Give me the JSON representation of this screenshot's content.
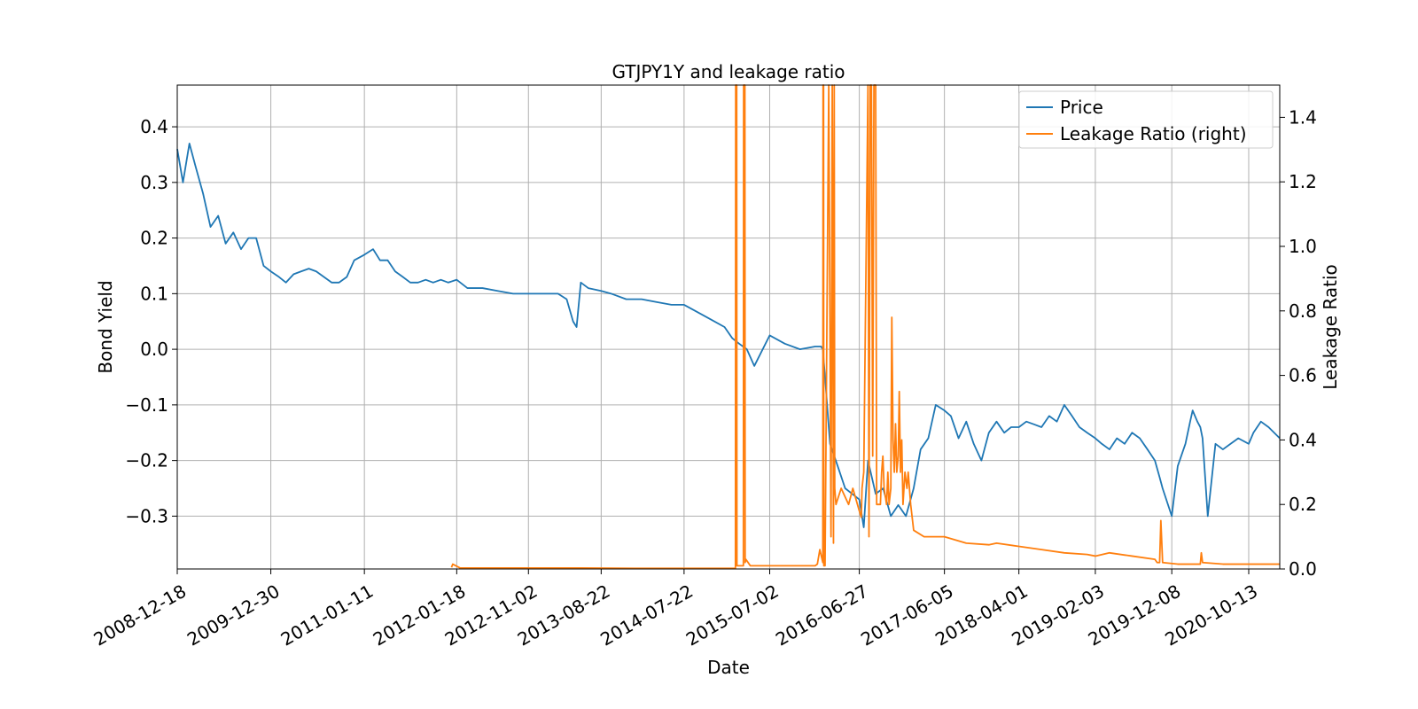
{
  "chart_data": {
    "type": "line",
    "title": "GTJPY1Y and leakage ratio",
    "xlabel": "Date",
    "ylabel": "Bond Yield",
    "y2label": "Leakage Ratio",
    "xlim": [
      "2008-12-18",
      "2021-02-15"
    ],
    "ylim": [
      -0.395,
      0.475
    ],
    "y2lim": [
      0.0,
      1.5
    ],
    "grid": true,
    "legend_position": "top-right",
    "x_ticks": [
      "2008-12-18",
      "2009-12-30",
      "2011-01-11",
      "2012-01-18",
      "2012-11-02",
      "2013-08-22",
      "2014-07-22",
      "2015-07-02",
      "2016-06-27",
      "2017-06-05",
      "2018-04-01",
      "2019-02-03",
      "2019-12-08",
      "2020-10-13"
    ],
    "y_ticks": [
      "0.4",
      "0.3",
      "0.2",
      "0.1",
      "0.0",
      "−0.1",
      "−0.2",
      "−0.3"
    ],
    "y_tick_values": [
      0.4,
      0.3,
      0.2,
      0.1,
      0.0,
      -0.1,
      -0.2,
      -0.3
    ],
    "y2_ticks": [
      "1.4",
      "1.2",
      "1.0",
      "0.8",
      "0.6",
      "0.4",
      "0.2",
      "0.0"
    ],
    "y2_tick_values": [
      1.4,
      1.2,
      1.0,
      0.8,
      0.6,
      0.4,
      0.2,
      0.0
    ],
    "series": [
      {
        "name": "Price",
        "axis": "left",
        "color": "#1f77b4",
        "x": [
          "2008-12-18",
          "2009-01-10",
          "2009-02-05",
          "2009-03-01",
          "2009-04-01",
          "2009-05-01",
          "2009-06-01",
          "2009-07-01",
          "2009-08-01",
          "2009-09-01",
          "2009-10-01",
          "2009-11-01",
          "2009-12-01",
          "2009-12-30",
          "2010-02-01",
          "2010-03-01",
          "2010-04-01",
          "2010-05-01",
          "2010-06-01",
          "2010-07-01",
          "2010-08-01",
          "2010-09-01",
          "2010-10-01",
          "2010-11-01",
          "2010-12-01",
          "2011-01-11",
          "2011-02-15",
          "2011-03-15",
          "2011-04-15",
          "2011-05-15",
          "2011-06-15",
          "2011-07-15",
          "2011-08-15",
          "2011-09-15",
          "2011-10-15",
          "2011-11-15",
          "2011-12-15",
          "2012-01-18",
          "2012-03-01",
          "2012-05-01",
          "2012-07-01",
          "2012-09-01",
          "2012-11-02",
          "2013-01-01",
          "2013-03-01",
          "2013-04-05",
          "2013-05-01",
          "2013-05-15",
          "2013-06-01",
          "2013-07-01",
          "2013-08-22",
          "2013-10-01",
          "2013-12-01",
          "2014-02-01",
          "2014-04-01",
          "2014-06-01",
          "2014-07-22",
          "2014-09-01",
          "2014-11-01",
          "2015-01-01",
          "2015-02-01",
          "2015-03-01",
          "2015-04-01",
          "2015-05-01",
          "2015-07-02",
          "2015-09-01",
          "2015-11-01",
          "2016-01-01",
          "2016-01-25",
          "2016-02-01",
          "2016-02-10",
          "2016-03-01",
          "2016-04-01",
          "2016-05-01",
          "2016-06-27",
          "2016-07-15",
          "2016-08-01",
          "2016-09-01",
          "2016-10-01",
          "2016-11-01",
          "2016-12-01",
          "2017-01-01",
          "2017-02-01",
          "2017-03-01",
          "2017-04-01",
          "2017-05-01",
          "2017-06-05",
          "2017-07-01",
          "2017-08-01",
          "2017-09-01",
          "2017-10-01",
          "2017-11-01",
          "2017-12-01",
          "2018-01-01",
          "2018-02-01",
          "2018-03-01",
          "2018-04-01",
          "2018-05-01",
          "2018-06-01",
          "2018-07-01",
          "2018-08-01",
          "2018-09-01",
          "2018-10-01",
          "2018-11-01",
          "2018-12-01",
          "2019-01-01",
          "2019-02-03",
          "2019-03-01",
          "2019-04-01",
          "2019-05-01",
          "2019-06-01",
          "2019-07-01",
          "2019-08-01",
          "2019-09-01",
          "2019-10-01",
          "2019-10-20",
          "2019-11-01",
          "2019-12-08",
          "2020-01-01",
          "2020-02-01",
          "2020-02-20",
          "2020-03-01",
          "2020-03-20",
          "2020-04-01",
          "2020-04-10",
          "2020-05-01",
          "2020-06-01",
          "2020-07-01",
          "2020-08-01",
          "2020-09-01",
          "2020-10-13",
          "2020-11-01",
          "2020-12-01",
          "2021-01-01",
          "2021-02-15"
        ],
        "values": [
          0.36,
          0.3,
          0.37,
          0.33,
          0.28,
          0.22,
          0.24,
          0.19,
          0.21,
          0.18,
          0.2,
          0.2,
          0.15,
          0.14,
          0.13,
          0.12,
          0.135,
          0.14,
          0.145,
          0.14,
          0.13,
          0.12,
          0.12,
          0.13,
          0.16,
          0.17,
          0.18,
          0.16,
          0.16,
          0.14,
          0.13,
          0.12,
          0.12,
          0.125,
          0.12,
          0.125,
          0.12,
          0.125,
          0.11,
          0.11,
          0.105,
          0.1,
          0.1,
          0.1,
          0.1,
          0.09,
          0.05,
          0.04,
          0.12,
          0.11,
          0.105,
          0.1,
          0.09,
          0.09,
          0.085,
          0.08,
          0.08,
          0.07,
          0.055,
          0.04,
          0.02,
          0.01,
          0.0,
          -0.03,
          0.025,
          0.01,
          0.0,
          0.005,
          0.005,
          0.0,
          -0.05,
          -0.17,
          -0.21,
          -0.25,
          -0.27,
          -0.32,
          -0.2,
          -0.26,
          -0.25,
          -0.3,
          -0.28,
          -0.3,
          -0.25,
          -0.18,
          -0.16,
          -0.1,
          -0.11,
          -0.12,
          -0.16,
          -0.13,
          -0.17,
          -0.2,
          -0.15,
          -0.13,
          -0.15,
          -0.14,
          -0.14,
          -0.13,
          -0.135,
          -0.14,
          -0.12,
          -0.13,
          -0.1,
          -0.12,
          -0.14,
          -0.15,
          -0.16,
          -0.17,
          -0.18,
          -0.16,
          -0.17,
          -0.15,
          -0.16,
          -0.18,
          -0.2,
          -0.23,
          -0.25,
          -0.3,
          -0.21,
          -0.17,
          -0.13,
          -0.11,
          -0.13,
          -0.14,
          -0.16,
          -0.3,
          -0.17,
          -0.18,
          -0.17,
          -0.16,
          -0.17,
          -0.15,
          -0.13,
          -0.14,
          -0.16
        ]
      },
      {
        "name": "Leakage Ratio (right)",
        "axis": "right",
        "color": "#ff7f0e",
        "x": [
          "2011-12-28",
          "2012-01-02",
          "2012-02-01",
          "2013-06-01",
          "2014-01-01",
          "2015-02-14",
          "2015-02-15",
          "2015-02-17",
          "2015-02-19",
          "2015-02-20",
          "2015-03-18",
          "2015-03-19",
          "2015-03-24",
          "2015-03-25",
          "2015-03-28",
          "2015-04-15",
          "2015-06-01",
          "2015-09-01",
          "2016-01-01",
          "2016-01-10",
          "2016-01-20",
          "2016-02-01",
          "2016-02-02",
          "2016-02-04",
          "2016-02-05",
          "2016-02-10",
          "2016-02-25",
          "2016-03-05",
          "2016-03-10",
          "2016-03-15",
          "2016-03-18",
          "2016-03-20",
          "2016-03-25",
          "2016-04-15",
          "2016-05-15",
          "2016-06-01",
          "2016-06-27",
          "2016-07-05",
          "2016-07-08",
          "2016-07-15",
          "2016-08-01",
          "2016-08-05",
          "2016-08-10",
          "2016-08-15",
          "2016-08-20",
          "2016-08-25",
          "2016-09-01",
          "2016-09-05",
          "2016-09-20",
          "2016-09-25",
          "2016-09-30",
          "2016-10-05",
          "2016-10-15",
          "2016-10-20",
          "2016-10-25",
          "2016-11-01",
          "2016-11-05",
          "2016-11-10",
          "2016-11-15",
          "2016-11-20",
          "2016-11-25",
          "2016-12-01",
          "2016-12-05",
          "2016-12-10",
          "2016-12-15",
          "2016-12-20",
          "2016-12-28",
          "2017-01-05",
          "2017-01-10",
          "2017-01-20",
          "2017-02-01",
          "2017-03-15",
          "2017-06-05",
          "2017-09-01",
          "2017-12-01",
          "2018-01-01",
          "2018-04-01",
          "2018-07-01",
          "2018-10-01",
          "2019-01-01",
          "2019-02-03",
          "2019-04-01",
          "2019-07-01",
          "2019-10-01",
          "2019-10-10",
          "2019-10-15",
          "2019-10-20",
          "2019-10-25",
          "2019-11-01",
          "2020-01-01",
          "2020-04-01",
          "2020-04-05",
          "2020-04-10",
          "2020-07-01",
          "2020-10-13",
          "2021-02-15"
        ],
        "values": [
          0.005,
          0.015,
          0.003,
          0.003,
          0.002,
          0.002,
          1.5,
          1.5,
          1.5,
          0.01,
          0.01,
          1.5,
          1.5,
          0.02,
          0.03,
          0.01,
          0.01,
          0.01,
          0.01,
          0.015,
          0.06,
          0.02,
          1.5,
          1.5,
          0.01,
          0.01,
          1.5,
          0.1,
          1.5,
          0.08,
          1.5,
          0.25,
          0.2,
          0.25,
          0.2,
          0.25,
          0.18,
          0.16,
          0.25,
          0.3,
          1.5,
          0.1,
          1.5,
          1.5,
          0.35,
          1.5,
          1.5,
          0.2,
          0.2,
          0.3,
          0.35,
          0.25,
          0.2,
          0.3,
          0.2,
          0.25,
          0.78,
          0.4,
          0.3,
          0.45,
          0.3,
          0.35,
          0.55,
          0.3,
          0.4,
          0.2,
          0.3,
          0.25,
          0.3,
          0.2,
          0.12,
          0.1,
          0.1,
          0.08,
          0.075,
          0.08,
          0.07,
          0.06,
          0.05,
          0.045,
          0.04,
          0.05,
          0.04,
          0.03,
          0.02,
          0.02,
          0.02,
          0.15,
          0.02,
          0.015,
          0.015,
          0.05,
          0.02,
          0.015,
          0.015,
          0.015
        ]
      }
    ]
  }
}
